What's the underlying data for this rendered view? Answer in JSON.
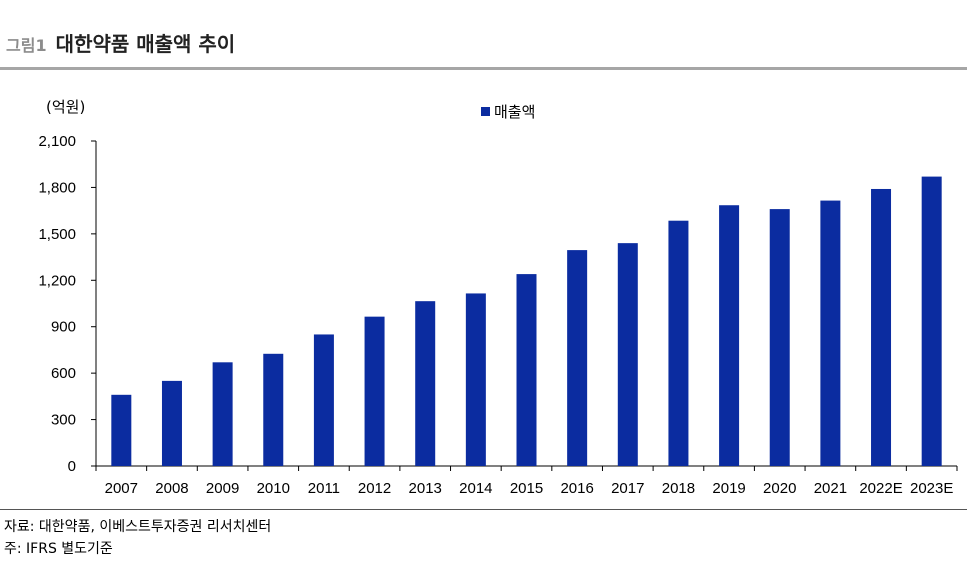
{
  "header": {
    "figure_label": "그림1",
    "title": "대한약품 매출액 추이"
  },
  "footer": {
    "source": "자료: 대한약품, 이베스트투자증권 리서치센터",
    "note": "주: IFRS 별도기준"
  },
  "colors": {
    "bar": "#0b2ca0",
    "axis": "#000000",
    "rule": "#a6a6a6"
  },
  "chart_data": {
    "type": "bar",
    "unit_label": "(억원)",
    "categories": [
      "2007",
      "2008",
      "2009",
      "2010",
      "2011",
      "2012",
      "2013",
      "2014",
      "2015",
      "2016",
      "2017",
      "2018",
      "2019",
      "2020",
      "2021",
      "2022E",
      "2023E"
    ],
    "series": [
      {
        "name": "매출액",
        "values": [
          460,
          550,
          670,
          725,
          850,
          965,
          1065,
          1115,
          1240,
          1395,
          1440,
          1585,
          1685,
          1660,
          1715,
          1790,
          1870
        ]
      }
    ],
    "ylim": [
      0,
      2100
    ],
    "yticks": [
      0,
      300,
      600,
      900,
      1200,
      1500,
      1800,
      2100
    ],
    "ytick_labels": [
      "0",
      "300",
      "600",
      "900",
      "1,200",
      "1,500",
      "1,800",
      "2,100"
    ],
    "legend_position": "top-center",
    "grid": false
  }
}
